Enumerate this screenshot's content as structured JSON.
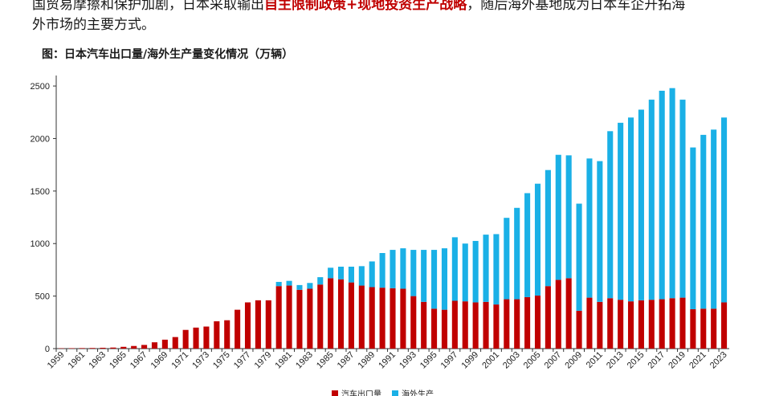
{
  "text": {
    "line1": "国贸易摩擦和保护加剧，日本采取输出",
    "highlight": "自主限制政策+现地投资生产战略",
    "line1_end": "，随后海外基地成为日本车企开拓海",
    "line2": "外市场的主要方式。"
  },
  "figure_title": "图：日本汽车出口量/海外生产量变化情况（万辆）",
  "colors": {
    "export": "#c00000",
    "overseas": "#1ab0e6",
    "highlight": "#c00000"
  },
  "chart_data": {
    "type": "bar",
    "stacked": true,
    "x": [
      1959,
      1960,
      1961,
      1962,
      1963,
      1964,
      1965,
      1966,
      1967,
      1968,
      1969,
      1970,
      1971,
      1972,
      1973,
      1974,
      1975,
      1976,
      1977,
      1978,
      1979,
      1980,
      1981,
      1982,
      1983,
      1984,
      1985,
      1986,
      1987,
      1988,
      1989,
      1990,
      1991,
      1992,
      1993,
      1994,
      1995,
      1996,
      1997,
      1998,
      1999,
      2000,
      2001,
      2002,
      2003,
      2004,
      2005,
      2006,
      2007,
      2008,
      2009,
      2010,
      2011,
      2012,
      2013,
      2014,
      2015,
      2016,
      2017,
      2018,
      2019,
      2020,
      2021,
      2022,
      2023
    ],
    "x_tick_labels": [
      "1959",
      "1961",
      "1963",
      "1965",
      "1967",
      "1969",
      "1971",
      "1973",
      "1975",
      "1977",
      "1979",
      "1981",
      "1983",
      "1985",
      "1987",
      "1989",
      "1991",
      "1993",
      "1995",
      "1997",
      "1999",
      "2001",
      "2003",
      "2005",
      "2007",
      "2009",
      "2011",
      "2013",
      "2015",
      "2017",
      "2019",
      "2021",
      "2023"
    ],
    "series": [
      {
        "name": "汽车出口量",
        "values": [
          3,
          4,
          5,
          6,
          8,
          10,
          17,
          25,
          35,
          60,
          85,
          110,
          178,
          200,
          210,
          260,
          270,
          370,
          440,
          460,
          460,
          595,
          600,
          560,
          570,
          610,
          670,
          660,
          630,
          600,
          585,
          580,
          575,
          570,
          500,
          445,
          380,
          370,
          455,
          450,
          440,
          445,
          420,
          470,
          470,
          490,
          505,
          595,
          655,
          670,
          360,
          485,
          445,
          480,
          465,
          450,
          460,
          465,
          470,
          480,
          485,
          375,
          380,
          380,
          440
        ]
      },
      {
        "name": "海外生产",
        "values": [
          0,
          0,
          0,
          0,
          0,
          0,
          0,
          0,
          0,
          0,
          0,
          0,
          0,
          0,
          0,
          0,
          0,
          0,
          0,
          0,
          0,
          40,
          45,
          45,
          55,
          70,
          100,
          120,
          150,
          185,
          245,
          330,
          365,
          385,
          440,
          495,
          560,
          585,
          605,
          550,
          585,
          640,
          670,
          775,
          870,
          990,
          1065,
          1105,
          1190,
          1170,
          1020,
          1325,
          1340,
          1590,
          1685,
          1750,
          1815,
          1905,
          1985,
          2000,
          1885,
          1540,
          1655,
          1705,
          1760
        ]
      }
    ],
    "ylim": [
      0,
      2600
    ],
    "yticks": [
      0,
      500,
      1000,
      1500,
      2000,
      2500
    ],
    "grid": false,
    "legend_position": "bottom"
  }
}
